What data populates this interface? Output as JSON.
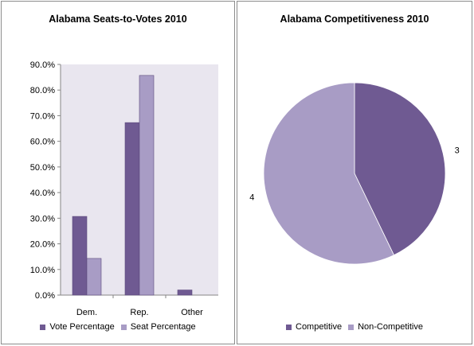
{
  "colors": {
    "dark": "#6f5a92",
    "light": "#a89cc5",
    "plot_bg": "#e9e6ef",
    "axis": "#868686"
  },
  "chart_data": [
    {
      "type": "bar",
      "title": "Alabama Seats-to-Votes 2010",
      "categories": [
        "Dem.",
        "Rep.",
        "Other"
      ],
      "series": [
        {
          "name": "Vote Percentage",
          "values": [
            30.7,
            67.3,
            2.0
          ]
        },
        {
          "name": "Seat Percentage",
          "values": [
            14.3,
            85.7,
            0.0
          ]
        }
      ],
      "ylim": [
        0,
        90
      ],
      "yticks": [
        0,
        10,
        20,
        30,
        40,
        50,
        60,
        70,
        80,
        90
      ],
      "ytick_labels": [
        "0.0%",
        "10.0%",
        "20.0%",
        "30.0%",
        "40.0%",
        "50.0%",
        "60.0%",
        "70.0%",
        "80.0%",
        "90.0%"
      ],
      "grid": false,
      "legend_position": "bottom"
    },
    {
      "type": "pie",
      "title": "Alabama Competitiveness 2010",
      "labels": [
        "Competitive",
        "Non-Competitive"
      ],
      "values": [
        3,
        4
      ],
      "data_labels": [
        "3",
        "4"
      ],
      "legend_position": "bottom"
    }
  ]
}
